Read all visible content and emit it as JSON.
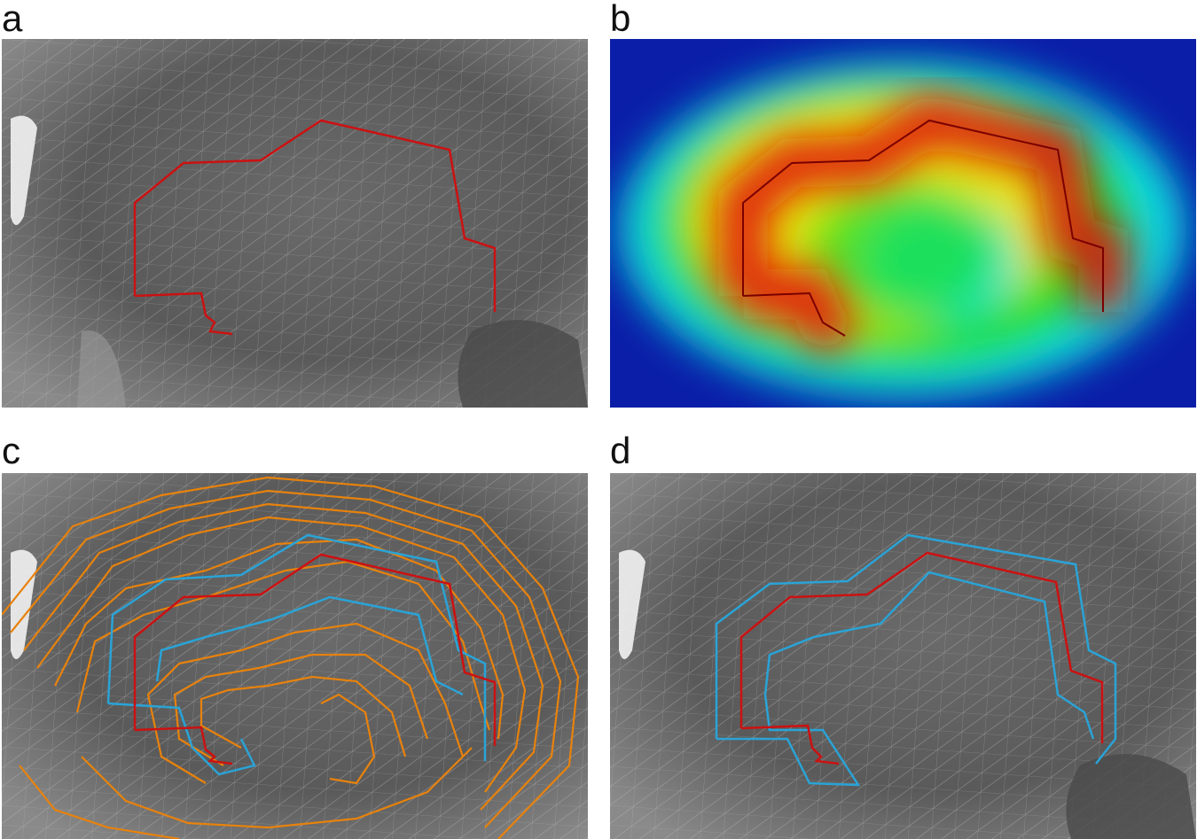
{
  "figure": {
    "panels": [
      {
        "id": "a",
        "label": "a",
        "content": "mesh-with-red-path"
      },
      {
        "id": "b",
        "label": "b",
        "content": "heatmap-with-red-path"
      },
      {
        "id": "c",
        "label": "c",
        "content": "mesh-with-contour-lines"
      },
      {
        "id": "d",
        "label": "d",
        "content": "mesh-with-offset-paths"
      }
    ]
  },
  "colors": {
    "path_red": "#cc1111",
    "contour_orange": "#e8820c",
    "contour_blue": "#2aa3d6",
    "mesh_dark": "#5e5e5e",
    "mesh_light": "#c9c9c9",
    "heat_blue": "#0a1ea8",
    "heat_cyan": "#10e8e0",
    "heat_green": "#22dd22",
    "heat_yellow": "#e6e60f",
    "heat_red": "#e01010"
  }
}
